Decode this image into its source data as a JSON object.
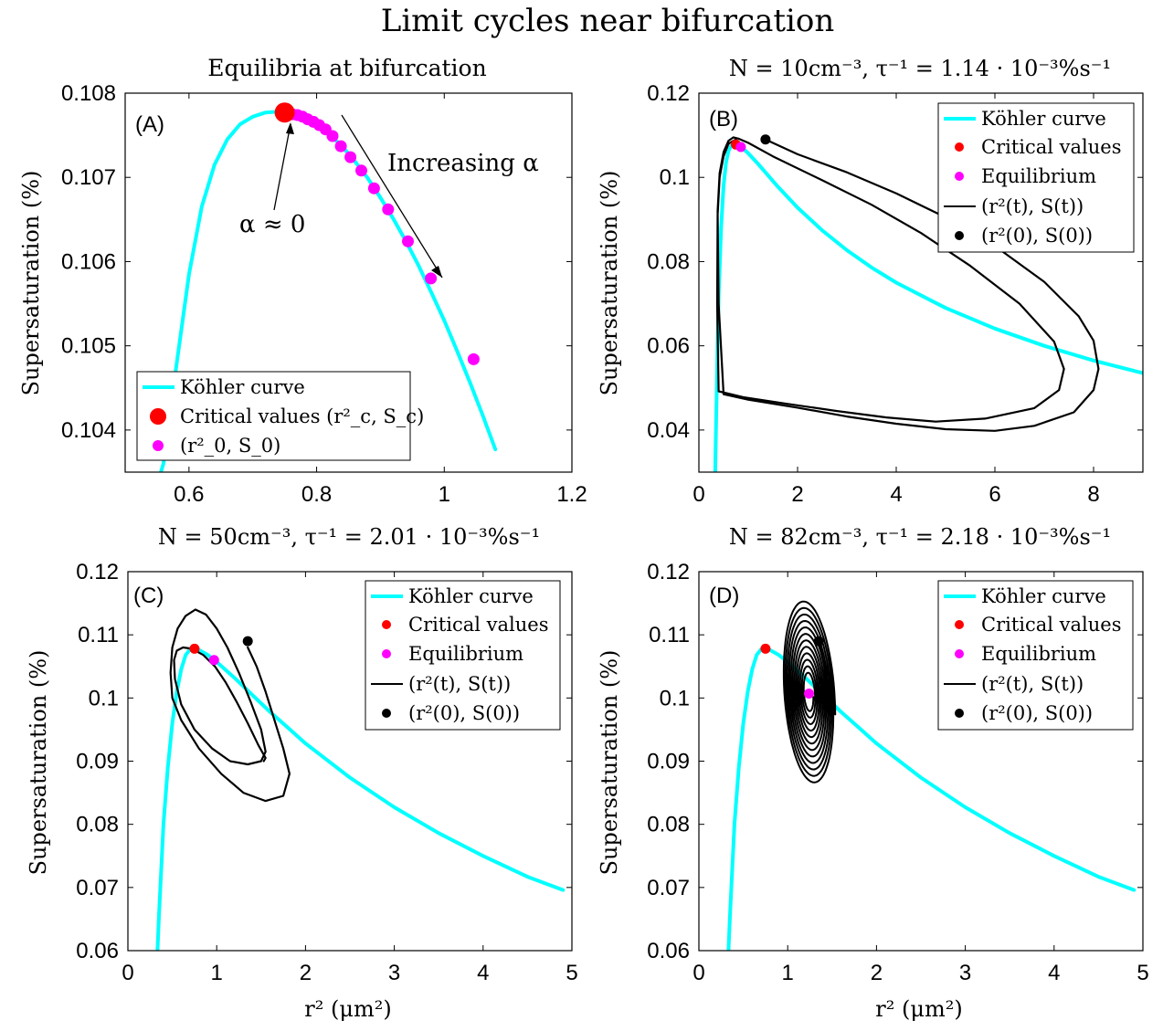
{
  "figure": {
    "title": "Limit cycles near bifurcation",
    "colors": {
      "kohler": "#00FFFF",
      "critical": "#FF0000",
      "equilibrium": "#FF00FF",
      "trajectory": "#000000",
      "axis": "#000000"
    }
  },
  "chart_data": [
    {
      "id": "A",
      "type": "line",
      "panel_label": "(A)",
      "title": "Equilibria at bifurcation",
      "xlabel": "",
      "ylabel": "Supersaturation (%)",
      "xlim": [
        0.5,
        1.2
      ],
      "ylim": [
        0.1035,
        0.108
      ],
      "xticks": [
        0.6,
        0.8,
        1.0,
        1.2
      ],
      "xtick_labels": [
        "0.6",
        "0.8",
        "1",
        "1.2"
      ],
      "yticks": [
        0.104,
        0.105,
        0.106,
        0.107,
        0.108
      ],
      "ytick_labels": [
        "0.104",
        "0.105",
        "0.106",
        "0.107",
        "0.108"
      ],
      "legend": {
        "position": "bottom-left",
        "entries": [
          "Köhler curve",
          "Critical values (r²_c, S_c)",
          "(r²_0, S_0)"
        ]
      },
      "annotations": [
        {
          "text": "Increasing α"
        },
        {
          "text": "α ≈ 0"
        }
      ],
      "kohler": {
        "x": [
          0.55,
          0.56,
          0.58,
          0.6,
          0.62,
          0.64,
          0.66,
          0.68,
          0.7,
          0.72,
          0.74,
          0.75,
          0.76,
          0.78,
          0.8,
          0.82,
          0.84,
          0.86,
          0.88,
          0.9,
          0.92,
          0.94,
          0.96,
          0.98,
          1.0,
          1.02,
          1.04,
          1.06,
          1.08
        ],
        "y": [
          0.10335,
          0.1036,
          0.10475,
          0.10585,
          0.10665,
          0.10715,
          0.10745,
          0.10763,
          0.10772,
          0.10777,
          0.10778,
          0.10777,
          0.10776,
          0.10771,
          0.10763,
          0.10751,
          0.10737,
          0.10719,
          0.10699,
          0.10676,
          0.10651,
          0.10624,
          0.10595,
          0.10563,
          0.1053,
          0.10494,
          0.10457,
          0.10418,
          0.10377
        ]
      },
      "critical": {
        "x": [
          0.75
        ],
        "y": [
          0.10777
        ]
      },
      "equilibria": {
        "x": [
          0.755,
          0.762,
          0.77,
          0.778,
          0.786,
          0.795,
          0.804,
          0.814,
          0.825,
          0.838,
          0.853,
          0.87,
          0.89,
          0.912,
          0.943,
          0.979,
          1.046
        ],
        "y": [
          0.10776,
          0.10775,
          0.10774,
          0.10772,
          0.10769,
          0.10766,
          0.10762,
          0.10757,
          0.10749,
          0.10737,
          0.10724,
          0.10708,
          0.10687,
          0.10662,
          0.10624,
          0.1058,
          0.10484
        ]
      }
    },
    {
      "id": "B",
      "type": "line",
      "panel_label": "(B)",
      "title": "N = 10cm⁻³, τ⁻¹ = 1.14 · 10⁻³%s⁻¹",
      "xlabel": "",
      "ylabel": "Supersaturation (%)",
      "xlim": [
        0,
        9
      ],
      "ylim": [
        0.03,
        0.12
      ],
      "xticks": [
        0,
        2,
        4,
        6,
        8
      ],
      "xtick_labels": [
        "0",
        "2",
        "4",
        "6",
        "8"
      ],
      "yticks": [
        0.04,
        0.06,
        0.08,
        0.1,
        0.12
      ],
      "ytick_labels": [
        "0.04",
        "0.06",
        "0.08",
        "0.1",
        "0.12"
      ],
      "legend": {
        "position": "top-right",
        "entries": [
          "Köhler curve",
          "Critical values",
          "Equilibrium",
          "(r²(t), S(t))",
          "(r²(0), S(0))"
        ]
      },
      "kohler": {
        "x": [
          0.33,
          0.35,
          0.4,
          0.45,
          0.5,
          0.55,
          0.6,
          0.65,
          0.7,
          0.75,
          0.8,
          0.9,
          1.0,
          1.2,
          1.4,
          1.6,
          1.8,
          2.0,
          2.5,
          3.0,
          3.5,
          4.0,
          5.0,
          6.0,
          7.0,
          8.0,
          9.0
        ],
        "y": [
          0.029,
          0.0425,
          0.072,
          0.088,
          0.098,
          0.1035,
          0.1063,
          0.1075,
          0.1078,
          0.1078,
          0.1075,
          0.1068,
          0.1057,
          0.1032,
          0.1005,
          0.0978,
          0.0953,
          0.0928,
          0.0874,
          0.0827,
          0.0786,
          0.075,
          0.069,
          0.0641,
          0.06,
          0.0565,
          0.0535
        ]
      },
      "critical": {
        "x": [
          0.75
        ],
        "y": [
          0.1078
        ]
      },
      "equilibrium": {
        "x": [
          0.85
        ],
        "y": [
          0.1072
        ]
      },
      "initial": {
        "x": [
          1.35
        ],
        "y": [
          0.109
        ]
      },
      "trajectory": {
        "x": [
          1.35,
          2.0,
          3.0,
          4.0,
          5.0,
          6.0,
          7.0,
          7.7,
          8.0,
          8.1,
          8.0,
          7.6,
          6.8,
          6.0,
          5.0,
          4.0,
          3.0,
          2.0,
          1.0,
          0.5,
          0.4,
          0.38,
          0.42,
          0.5,
          0.6,
          0.7,
          0.8,
          1.0,
          1.5,
          2.5,
          3.5,
          4.5,
          5.5,
          6.5,
          7.2,
          7.4,
          7.3,
          6.8,
          5.8,
          4.8,
          3.8,
          2.8,
          1.8,
          0.9,
          0.4,
          0.37,
          0.38,
          0.42,
          0.5,
          0.6,
          0.75
        ],
        "y": [
          0.109,
          0.1055,
          0.1012,
          0.0962,
          0.0905,
          0.0837,
          0.0752,
          0.067,
          0.0612,
          0.0545,
          0.0495,
          0.0442,
          0.041,
          0.0398,
          0.0402,
          0.0415,
          0.0432,
          0.0453,
          0.0472,
          0.0485,
          0.07,
          0.092,
          0.101,
          0.106,
          0.1087,
          0.1095,
          0.1092,
          0.1082,
          0.105,
          0.0993,
          0.0935,
          0.0868,
          0.079,
          0.07,
          0.061,
          0.0545,
          0.0495,
          0.0452,
          0.0427,
          0.042,
          0.043,
          0.0445,
          0.0462,
          0.0478,
          0.0492,
          0.07,
          0.091,
          0.1,
          0.105,
          0.108,
          0.109
        ]
      }
    },
    {
      "id": "C",
      "type": "line",
      "panel_label": "(C)",
      "title": "N = 50cm⁻³, τ⁻¹ = 2.01 · 10⁻³%s⁻¹",
      "xlabel": "r² (μm²)",
      "ylabel": "Supersaturation (%)",
      "xlim": [
        0,
        5
      ],
      "ylim": [
        0.06,
        0.12
      ],
      "xticks": [
        0,
        1,
        2,
        3,
        4,
        5
      ],
      "xtick_labels": [
        "0",
        "1",
        "2",
        "3",
        "4",
        "5"
      ],
      "yticks": [
        0.06,
        0.07,
        0.08,
        0.09,
        0.1,
        0.11,
        0.12
      ],
      "ytick_labels": [
        "0.06",
        "0.07",
        "0.08",
        "0.09",
        "0.1",
        "0.11",
        "0.12"
      ],
      "legend": {
        "position": "top-right",
        "entries": [
          "Köhler curve",
          "Critical values",
          "Equilibrium",
          "(r²(t), S(t))",
          "(r²(0), S(0))"
        ]
      },
      "kohler": {
        "x": [
          0.33,
          0.35,
          0.4,
          0.45,
          0.5,
          0.55,
          0.6,
          0.65,
          0.7,
          0.75,
          0.8,
          0.9,
          1.0,
          1.2,
          1.4,
          1.6,
          1.8,
          2.0,
          2.5,
          3.0,
          3.5,
          4.0,
          4.5,
          4.9
        ],
        "y": [
          0.059,
          0.0655,
          0.08,
          0.089,
          0.096,
          0.101,
          0.1045,
          0.1068,
          0.1077,
          0.1078,
          0.1076,
          0.1068,
          0.1057,
          0.1032,
          0.1005,
          0.0978,
          0.0953,
          0.0928,
          0.0874,
          0.0827,
          0.0786,
          0.075,
          0.0717,
          0.0696
        ]
      },
      "critical": {
        "x": [
          0.75
        ],
        "y": [
          0.1078
        ]
      },
      "equilibrium": {
        "x": [
          0.97
        ],
        "y": [
          0.106
        ]
      },
      "initial": {
        "x": [
          1.35
        ],
        "y": [
          0.109
        ]
      },
      "trajectory": {
        "x": [
          1.35,
          1.45,
          1.55,
          1.65,
          1.75,
          1.82,
          1.75,
          1.55,
          1.3,
          1.05,
          0.8,
          0.6,
          0.5,
          0.48,
          0.5,
          0.56,
          0.65,
          0.76,
          0.88,
          1.0,
          1.12,
          1.25,
          1.38,
          1.5,
          1.55,
          1.5,
          1.35,
          1.15,
          0.95,
          0.75,
          0.6,
          0.53,
          0.52,
          0.55,
          0.62,
          0.72,
          0.85,
          0.98,
          1.1,
          1.22,
          1.35,
          1.47,
          1.55,
          1.53
        ],
        "y": [
          0.108,
          0.105,
          0.101,
          0.0965,
          0.092,
          0.088,
          0.0845,
          0.0837,
          0.085,
          0.088,
          0.092,
          0.0965,
          0.1,
          0.104,
          0.108,
          0.111,
          0.113,
          0.114,
          0.1132,
          0.111,
          0.108,
          0.104,
          0.0995,
          0.095,
          0.0915,
          0.09,
          0.0895,
          0.09,
          0.092,
          0.095,
          0.099,
          0.103,
          0.106,
          0.1075,
          0.108,
          0.1078,
          0.1068,
          0.105,
          0.1025,
          0.0995,
          0.096,
          0.0925,
          0.0905,
          0.09
        ]
      }
    },
    {
      "id": "D",
      "type": "line",
      "panel_label": "(D)",
      "title": "N = 82cm⁻³, τ⁻¹ = 2.18 · 10⁻³%s⁻¹",
      "xlabel": "r² (μm²)",
      "ylabel": "Supersaturation (%)",
      "xlim": [
        0,
        5
      ],
      "ylim": [
        0.06,
        0.12
      ],
      "xticks": [
        0,
        1,
        2,
        3,
        4,
        5
      ],
      "xtick_labels": [
        "0",
        "1",
        "2",
        "3",
        "4",
        "5"
      ],
      "yticks": [
        0.06,
        0.07,
        0.08,
        0.09,
        0.1,
        0.11,
        0.12
      ],
      "ytick_labels": [
        "0.06",
        "0.07",
        "0.08",
        "0.09",
        "0.1",
        "0.11",
        "0.12"
      ],
      "legend": {
        "position": "top-right",
        "entries": [
          "Köhler curve",
          "Critical values",
          "Equilibrium",
          "(r²(t), S(t))",
          "(r²(0), S(0))"
        ]
      },
      "kohler": {
        "x": [
          0.33,
          0.35,
          0.4,
          0.45,
          0.5,
          0.55,
          0.6,
          0.65,
          0.7,
          0.75,
          0.8,
          0.9,
          1.0,
          1.2,
          1.4,
          1.6,
          1.8,
          2.0,
          2.5,
          3.0,
          3.5,
          4.0,
          4.5,
          4.9
        ],
        "y": [
          0.059,
          0.0655,
          0.08,
          0.089,
          0.096,
          0.101,
          0.1045,
          0.1068,
          0.1077,
          0.1078,
          0.1076,
          0.1068,
          0.1057,
          0.1032,
          0.1005,
          0.0978,
          0.0953,
          0.0928,
          0.0874,
          0.0827,
          0.0786,
          0.075,
          0.0717,
          0.0696
        ]
      },
      "critical": {
        "x": [
          0.75
        ],
        "y": [
          0.1078
        ]
      },
      "equilibrium": {
        "x": [
          1.24
        ],
        "y": [
          0.1007
        ]
      },
      "initial": {
        "x": [
          1.35
        ],
        "y": [
          0.109
        ]
      },
      "spiral": {
        "center": [
          1.24,
          0.1007
        ],
        "r_start": [
          0.48,
          0.0145
        ],
        "r_end": [
          0.08,
          0.0025
        ],
        "turns": 12,
        "tilt_deg": -35
      }
    }
  ]
}
